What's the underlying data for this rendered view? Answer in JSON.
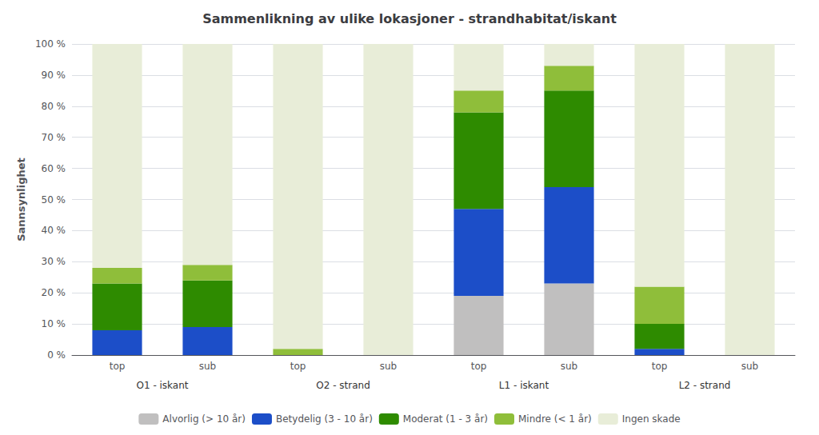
{
  "chart_data": {
    "type": "bar",
    "title": "Sammenlikning av ulike lokasjoner - strandhabitat/iskant",
    "y_label": "Sannsynlighet",
    "categories": [
      "top",
      "sub",
      "top",
      "sub",
      "top",
      "sub",
      "top",
      "sub"
    ],
    "groups": [
      "O1 - iskant",
      "O2 - strand",
      "L1 - iskant",
      "L2 - strand"
    ],
    "series": [
      {
        "name": "Alvorlig (> 10 år)",
        "color": "#c0bfbf",
        "values": [
          0,
          0,
          0,
          0,
          19,
          23,
          0,
          0
        ]
      },
      {
        "name": "Betydelig (3 - 10 år)",
        "color": "#1c4ec8",
        "values": [
          8,
          9,
          0,
          0,
          28,
          31,
          2,
          0
        ]
      },
      {
        "name": "Moderat (1 - 3 år)",
        "color": "#2e8b00",
        "values": [
          15,
          15,
          0,
          0,
          31,
          31,
          8,
          0
        ]
      },
      {
        "name": "Mindre (< 1 år)",
        "color": "#8fbe3a",
        "values": [
          5,
          5,
          2,
          0,
          7,
          8,
          12,
          0
        ]
      },
      {
        "name": "Ingen skade",
        "color": "#e8edd8",
        "values": [
          72,
          71,
          98,
          100,
          15,
          7,
          78,
          100
        ]
      }
    ],
    "stacked": true,
    "ylim": [
      0,
      100
    ],
    "yticks": [
      {
        "value": 0,
        "label": "0 %"
      },
      {
        "value": 10,
        "label": "10 %"
      },
      {
        "value": 20,
        "label": "20 %"
      },
      {
        "value": 30,
        "label": "30 %"
      },
      {
        "value": 40,
        "label": "40 %"
      },
      {
        "value": 50,
        "label": "50 %"
      },
      {
        "value": 60,
        "label": "60 %"
      },
      {
        "value": 70,
        "label": "70 %"
      },
      {
        "value": 80,
        "label": "80 %"
      },
      {
        "value": 90,
        "label": "90 %"
      },
      {
        "value": 100,
        "label": "100 %"
      }
    ],
    "grid": true,
    "legend": "bottom"
  }
}
